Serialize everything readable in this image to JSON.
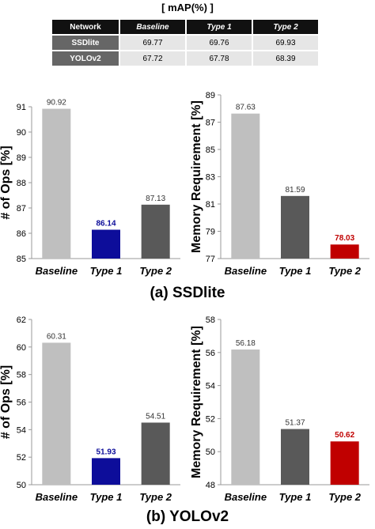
{
  "table": {
    "title": "[ mAP(%) ]",
    "headers": [
      "Network",
      "Baseline",
      "Type 1",
      "Type 2"
    ],
    "rows": [
      {
        "name": "SSDlite",
        "values": [
          "69.77",
          "69.76",
          "69.93"
        ]
      },
      {
        "name": "YOLOv2",
        "values": [
          "67.72",
          "67.78",
          "68.39"
        ]
      }
    ]
  },
  "captions": {
    "a": "(a) SSDlite",
    "b": "(b) YOLOv2"
  },
  "chart_data": [
    {
      "type": "bar",
      "id": "ssd-ops",
      "ylabel": "# of Ops [%]",
      "categories": [
        "Baseline",
        "Type 1",
        "Type 2"
      ],
      "values": [
        90.92,
        86.14,
        87.13
      ],
      "labels": [
        "90.92",
        "86.14",
        "87.13"
      ],
      "ylim": [
        85,
        91
      ],
      "yticks": [
        85,
        86,
        87,
        88,
        89,
        90,
        91
      ],
      "colors": [
        "#bfbfbf",
        "#0d0d9a",
        "#595959"
      ],
      "label_colors": [
        "#333333",
        "#0d0d9a",
        "#333333"
      ]
    },
    {
      "type": "bar",
      "id": "ssd-mem",
      "ylabel": "Memory Requirement [%]",
      "categories": [
        "Baseline",
        "Type 1",
        "Type 2"
      ],
      "values": [
        87.63,
        81.59,
        78.03
      ],
      "labels": [
        "87.63",
        "81.59",
        "78.03"
      ],
      "ylim": [
        77,
        89
      ],
      "yticks": [
        77,
        79,
        81,
        83,
        85,
        87,
        89
      ],
      "colors": [
        "#bfbfbf",
        "#595959",
        "#c00000"
      ],
      "label_colors": [
        "#333333",
        "#333333",
        "#c00000"
      ]
    },
    {
      "type": "bar",
      "id": "yolo-ops",
      "ylabel": "# of Ops [%]",
      "categories": [
        "Baseline",
        "Type 1",
        "Type 2"
      ],
      "values": [
        60.31,
        51.93,
        54.51
      ],
      "labels": [
        "60.31",
        "51.93",
        "54.51"
      ],
      "ylim": [
        50,
        62
      ],
      "yticks": [
        50,
        52,
        54,
        56,
        58,
        60,
        62
      ],
      "colors": [
        "#bfbfbf",
        "#0d0d9a",
        "#595959"
      ],
      "label_colors": [
        "#333333",
        "#0d0d9a",
        "#333333"
      ]
    },
    {
      "type": "bar",
      "id": "yolo-mem",
      "ylabel": "Memory Requirement [%]",
      "categories": [
        "Baseline",
        "Type 1",
        "Type 2"
      ],
      "values": [
        56.18,
        51.37,
        50.62
      ],
      "labels": [
        "56.18",
        "51.37",
        "50.62"
      ],
      "ylim": [
        48,
        58
      ],
      "yticks": [
        48,
        50,
        52,
        54,
        56,
        58
      ],
      "colors": [
        "#bfbfbf",
        "#595959",
        "#c00000"
      ],
      "label_colors": [
        "#333333",
        "#333333",
        "#c00000"
      ]
    }
  ]
}
